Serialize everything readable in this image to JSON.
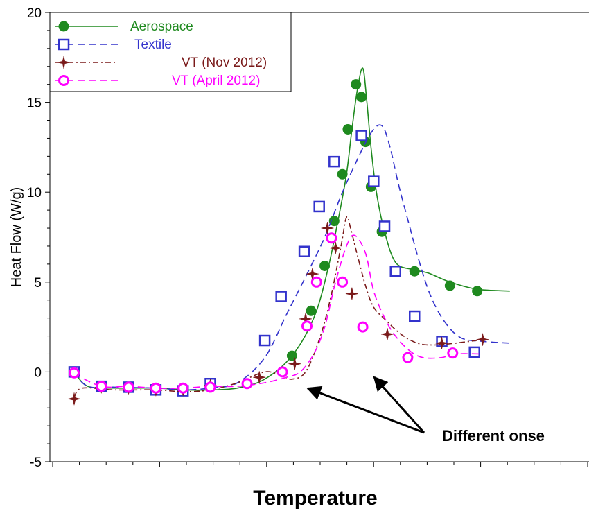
{
  "chart_data": {
    "type": "line",
    "title": "",
    "xlabel": "Temperature",
    "ylabel": "Heat Flow (W/g)",
    "ylim": [
      -5,
      20
    ],
    "yticks": [
      "-5",
      "0",
      "5",
      "10",
      "15",
      "20"
    ],
    "x_tick_labels_shown": false,
    "grid": false,
    "legend_position": "top-left",
    "series": [
      {
        "name": "Aerospace",
        "color": "#1f8a1f",
        "line_style": "solid",
        "marker": "filled-circle",
        "curve": [
          [
            0,
            0
          ],
          [
            0.5,
            -0.8
          ],
          [
            1.5,
            -0.9
          ],
          [
            3,
            -0.9
          ],
          [
            4,
            -1.0
          ],
          [
            5,
            -1.0
          ],
          [
            6,
            -0.9
          ],
          [
            7,
            -0.4
          ],
          [
            8,
            0.9
          ],
          [
            8.8,
            3.0
          ],
          [
            9.3,
            5.6
          ],
          [
            9.7,
            8.5
          ],
          [
            10.0,
            11.0
          ],
          [
            10.2,
            13.5
          ],
          [
            10.4,
            15.7
          ],
          [
            10.6,
            16.9
          ],
          [
            10.75,
            15.0
          ],
          [
            10.9,
            12.5
          ],
          [
            11.1,
            10.0
          ],
          [
            11.4,
            7.8
          ],
          [
            11.8,
            6.1
          ],
          [
            12.4,
            5.7
          ],
          [
            13.0,
            5.5
          ],
          [
            13.8,
            5.0
          ],
          [
            14.8,
            4.6
          ],
          [
            16,
            4.5
          ]
        ],
        "points": [
          [
            0,
            0
          ],
          [
            1,
            -0.8
          ],
          [
            2,
            -0.85
          ],
          [
            3,
            -1.0
          ],
          [
            4,
            -1.0
          ],
          [
            5,
            -0.8
          ],
          [
            8,
            0.9
          ],
          [
            8.7,
            3.4
          ],
          [
            9.2,
            5.9
          ],
          [
            9.55,
            8.4
          ],
          [
            9.85,
            11.0
          ],
          [
            10.05,
            13.5
          ],
          [
            10.35,
            16.0
          ],
          [
            10.55,
            15.3
          ],
          [
            10.7,
            12.8
          ],
          [
            10.9,
            10.3
          ],
          [
            11.3,
            7.8
          ],
          [
            12.5,
            5.6
          ],
          [
            13.8,
            4.8
          ],
          [
            14.8,
            4.5
          ]
        ],
        "point_range": [
          0,
          14.8
        ]
      },
      {
        "name": "Textile",
        "color": "#3333cc",
        "line_style": "dashed",
        "marker": "open-square",
        "curve": [
          [
            0,
            0
          ],
          [
            0.5,
            -0.8
          ],
          [
            1.5,
            -0.85
          ],
          [
            3,
            -0.9
          ],
          [
            4,
            -1.0
          ],
          [
            5,
            -0.9
          ],
          [
            6,
            -0.6
          ],
          [
            7,
            0.8
          ],
          [
            7.8,
            3.2
          ],
          [
            8.6,
            5.6
          ],
          [
            9.2,
            7.5
          ],
          [
            9.8,
            9.8
          ],
          [
            10.3,
            11.5
          ],
          [
            10.9,
            13.3
          ],
          [
            11.3,
            13.7
          ],
          [
            11.6,
            12.5
          ],
          [
            11.9,
            10.5
          ],
          [
            12.3,
            8.2
          ],
          [
            12.7,
            6.0
          ],
          [
            13.1,
            4.2
          ],
          [
            13.6,
            2.8
          ],
          [
            14.2,
            1.9
          ],
          [
            15,
            1.7
          ],
          [
            16,
            1.6
          ]
        ],
        "points": [
          [
            0,
            0
          ],
          [
            1,
            -0.8
          ],
          [
            2,
            -0.85
          ],
          [
            3,
            -1.0
          ],
          [
            4,
            -1.05
          ],
          [
            5,
            -0.65
          ],
          [
            7,
            1.75
          ],
          [
            7.6,
            4.2
          ],
          [
            8.45,
            6.7
          ],
          [
            9.0,
            9.2
          ],
          [
            9.55,
            11.7
          ],
          [
            10.55,
            13.15
          ],
          [
            11.0,
            10.6
          ],
          [
            11.4,
            8.1
          ],
          [
            11.8,
            5.6
          ],
          [
            12.5,
            3.1
          ],
          [
            13.5,
            1.7
          ],
          [
            14.7,
            1.1
          ]
        ],
        "point_range": [
          0,
          14.7
        ]
      },
      {
        "name": "VT (Nov 2012)",
        "color": "#7a1a1a",
        "line_style": "dash-dot",
        "marker": "star",
        "curve": [
          [
            0,
            -1.4
          ],
          [
            0.3,
            -0.9
          ],
          [
            1.5,
            -1.0
          ],
          [
            3,
            -1.0
          ],
          [
            4,
            -1.1
          ],
          [
            5,
            -1.0
          ],
          [
            6,
            -0.6
          ],
          [
            7,
            0.0
          ],
          [
            7.6,
            -0.2
          ],
          [
            8.0,
            -0.4
          ],
          [
            8.5,
            0.0
          ],
          [
            9.0,
            1.8
          ],
          [
            9.4,
            4.0
          ],
          [
            9.8,
            7.0
          ],
          [
            10.0,
            8.6
          ],
          [
            10.15,
            8.0
          ],
          [
            10.4,
            6.5
          ],
          [
            10.7,
            4.8
          ],
          [
            11.0,
            3.6
          ],
          [
            11.5,
            2.8
          ],
          [
            12.0,
            2.1
          ],
          [
            12.6,
            1.6
          ],
          [
            13.2,
            1.5
          ],
          [
            14,
            1.6
          ],
          [
            15,
            1.8
          ]
        ],
        "points": [
          [
            0,
            -1.5
          ],
          [
            1,
            -0.85
          ],
          [
            2,
            -0.9
          ],
          [
            3,
            -1.0
          ],
          [
            4,
            -1.0
          ],
          [
            5,
            -0.75
          ],
          [
            6.8,
            -0.3
          ],
          [
            8.1,
            0.45
          ],
          [
            8.5,
            2.95
          ],
          [
            8.75,
            5.45
          ],
          [
            9.3,
            8.0
          ],
          [
            9.6,
            6.9
          ],
          [
            10.2,
            4.35
          ],
          [
            11.5,
            2.1
          ],
          [
            13.5,
            1.6
          ],
          [
            15,
            1.8
          ]
        ],
        "point_range": [
          0,
          15
        ]
      },
      {
        "name": "VT (April 2012)",
        "color": "#ff00ff",
        "line_style": "dashed",
        "marker": "open-circle",
        "curve": [
          [
            0,
            -0.1
          ],
          [
            1,
            -0.8
          ],
          [
            2,
            -0.8
          ],
          [
            3,
            -0.9
          ],
          [
            4,
            -0.9
          ],
          [
            5,
            -0.8
          ],
          [
            6,
            -0.8
          ],
          [
            7,
            -0.6
          ],
          [
            7.8,
            -0.3
          ],
          [
            8.3,
            0.0
          ],
          [
            8.8,
            1.0
          ],
          [
            9.2,
            2.5
          ],
          [
            9.6,
            5.0
          ],
          [
            10.0,
            7.0
          ],
          [
            10.3,
            7.6
          ],
          [
            10.7,
            6.6
          ],
          [
            11.0,
            4.5
          ],
          [
            11.4,
            3.0
          ],
          [
            11.8,
            2.0
          ],
          [
            12.3,
            1.2
          ],
          [
            12.8,
            0.8
          ],
          [
            13.5,
            0.8
          ],
          [
            14,
            1.0
          ],
          [
            15,
            1.0
          ]
        ],
        "points": [
          [
            0,
            -0.05
          ],
          [
            1,
            -0.8
          ],
          [
            2,
            -0.85
          ],
          [
            3,
            -0.9
          ],
          [
            4,
            -0.9
          ],
          [
            5,
            -0.85
          ],
          [
            6.35,
            -0.65
          ],
          [
            7.65,
            0.0
          ],
          [
            8.55,
            2.55
          ],
          [
            8.9,
            5.0
          ],
          [
            9.45,
            7.45
          ],
          [
            9.85,
            5.0
          ],
          [
            10.6,
            2.5
          ],
          [
            12.25,
            0.8
          ],
          [
            13.9,
            1.05
          ]
        ],
        "point_range": [
          0,
          15
        ]
      }
    ],
    "annotations": [
      {
        "text": "Different onse",
        "arrows_to": [
          "VT (Nov 2012) onset",
          "VT (April 2012) onset"
        ]
      }
    ]
  }
}
